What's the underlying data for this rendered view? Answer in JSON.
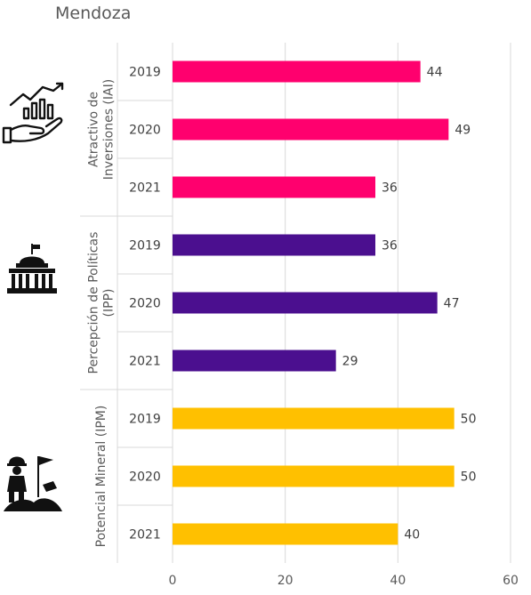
{
  "title": "Mendoza",
  "chart_data": {
    "type": "bar",
    "orientation": "horizontal",
    "title": "Mendoza",
    "xlim": [
      0,
      60
    ],
    "x_ticks": [
      0,
      20,
      40,
      60
    ],
    "grid": true,
    "groups": [
      {
        "label": "Atractivo de Inversiones (IAI)",
        "label_lines": [
          "Atractivo de",
          "Inversiones (IAI)"
        ],
        "color": "#FF006E",
        "icon": "investment-hand-growth-icon",
        "categories": [
          "2019",
          "2020",
          "2021"
        ],
        "values": [
          44,
          49,
          36
        ]
      },
      {
        "label": "Percepción de Políticas (IPP)",
        "label_lines": [
          "Percepción de Políticas",
          "(IPP)"
        ],
        "color": "#4B0F8F",
        "icon": "government-building-icon",
        "categories": [
          "2019",
          "2020",
          "2021"
        ],
        "values": [
          36,
          47,
          29
        ]
      },
      {
        "label": "Potencial Mineral (IPM)",
        "label_lines": [
          "Potencial Mineral (IPM)"
        ],
        "color": "#FFC000",
        "icon": "miner-flag-icon",
        "categories": [
          "2019",
          "2020",
          "2021"
        ],
        "values": [
          50,
          50,
          40
        ]
      }
    ]
  }
}
